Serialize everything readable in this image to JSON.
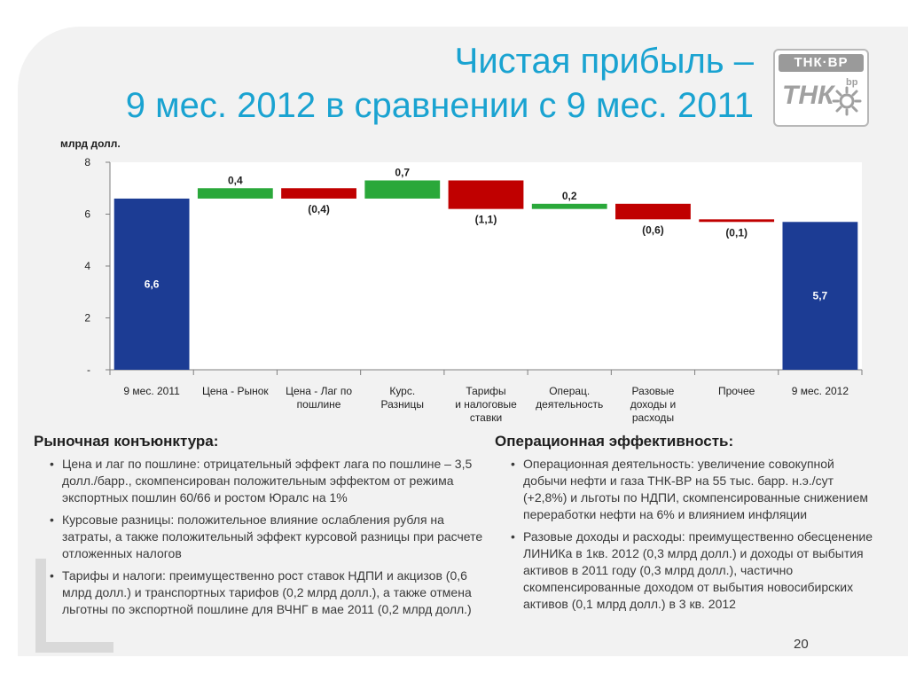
{
  "slide": {
    "title_line1": "Чистая прибыль –",
    "title_line2": "9 мес. 2012 в сравнении с 9 мес. 2011",
    "logo_text": "ТНК·ВР",
    "logo_mark": "ТНК",
    "logo_bp": "bp",
    "page_number": "20"
  },
  "colors": {
    "title": "#1aa3d1",
    "total": "#1c3c94",
    "increase": "#2aa83a",
    "decrease": "#c00000",
    "other": "#c00000"
  },
  "chart_data": {
    "type": "waterfall",
    "ylabel": "млрд долл.",
    "ylim": [
      0,
      8
    ],
    "yticks": [
      {
        "value": 8,
        "label": "8"
      },
      {
        "value": 6,
        "label": "6"
      },
      {
        "value": 4,
        "label": "4"
      },
      {
        "value": 2,
        "label": "2"
      },
      {
        "value": 0,
        "label": "-"
      }
    ],
    "categories": [
      [
        "9 мес. 2011"
      ],
      [
        "Цена - Рынок"
      ],
      [
        "Цена - Лаг по",
        "пошлине"
      ],
      [
        "Курс.",
        "Разницы"
      ],
      [
        "Тарифы",
        "и налоговые",
        "ставки"
      ],
      [
        "Операц.",
        "деятельность"
      ],
      [
        "Разовые",
        "доходы и",
        "расходы"
      ],
      [
        "Прочее"
      ],
      [
        "9 мес. 2012"
      ]
    ],
    "bars": [
      {
        "kind": "total",
        "start": 0,
        "end": 6.6,
        "label": "6,6"
      },
      {
        "kind": "increase",
        "start": 6.6,
        "end": 7.0,
        "label": "0,4"
      },
      {
        "kind": "decrease",
        "start": 7.0,
        "end": 6.6,
        "label": "(0,4)"
      },
      {
        "kind": "increase",
        "start": 6.6,
        "end": 7.3,
        "label": "0,7"
      },
      {
        "kind": "decrease",
        "start": 7.3,
        "end": 6.2,
        "label": "(1,1)"
      },
      {
        "kind": "increase",
        "start": 6.2,
        "end": 6.4,
        "label": "0,2"
      },
      {
        "kind": "decrease",
        "start": 6.4,
        "end": 5.8,
        "label": "(0,6)"
      },
      {
        "kind": "decrease",
        "start": 5.8,
        "end": 5.7,
        "label": "(0,1)"
      },
      {
        "kind": "total",
        "start": 0,
        "end": 5.7,
        "label": "5,7"
      }
    ]
  },
  "left_section": {
    "heading": "Рыночная конъюнктура:",
    "bullets": [
      "Цена и лаг по пошлине: отрицательный эффект лага по пошлине – 3,5 долл./барр., скомпенсирован положительным эффектом от режима экспортных пошлин 60/66 и ростом Юралс на 1%",
      "Курсовые разницы: положительное влияние ослабления рубля на затраты, а также положительный эффект курсовой разницы при расчете отложенных налогов",
      "Тарифы и налоги: преимущественно рост ставок НДПИ и акцизов (0,6 млрд долл.) и транспортных тарифов (0,2 млрд долл.), а также отмена льготны по экспортной пошлине для ВЧНГ в мае 2011 (0,2 млрд долл.)"
    ]
  },
  "right_section": {
    "heading": "Операционная эффективность:",
    "bullets": [
      "Операционная деятельность: увеличение совокупной добычи нефти и газа ТНК-ВР на 55 тыс. барр. н.э./сут (+2,8%) и льготы по НДПИ, скомпенсированные снижением переработки нефти на 6% и влиянием инфляции",
      "Разовые доходы и расходы: преимущественно обесценение ЛИНИКа в 1кв. 2012 (0,3 млрд долл.) и доходы от выбытия активов в 2011 году (0,3 млрд долл.), частично скомпенсированные доходом от выбытия новосибирских активов (0,1 млрд долл.) в 3 кв. 2012"
    ]
  }
}
